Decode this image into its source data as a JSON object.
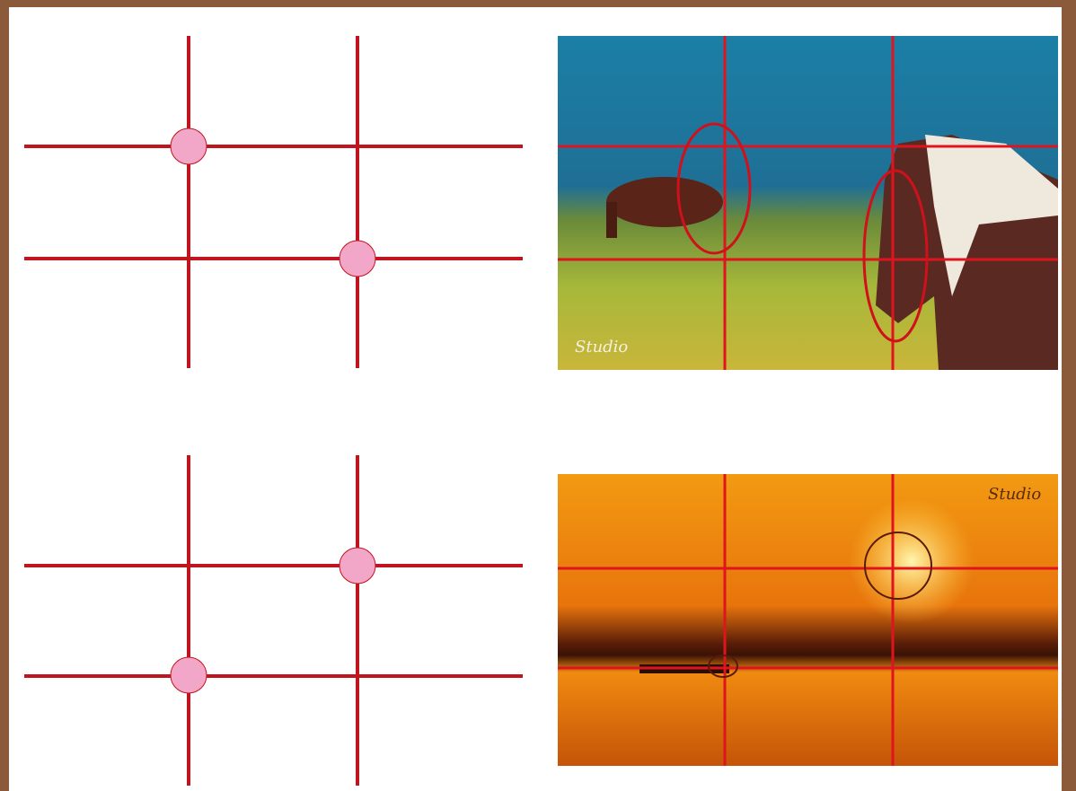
{
  "photos": [
    {
      "watermark": "Studio"
    },
    {
      "watermark": "Studio"
    }
  ]
}
